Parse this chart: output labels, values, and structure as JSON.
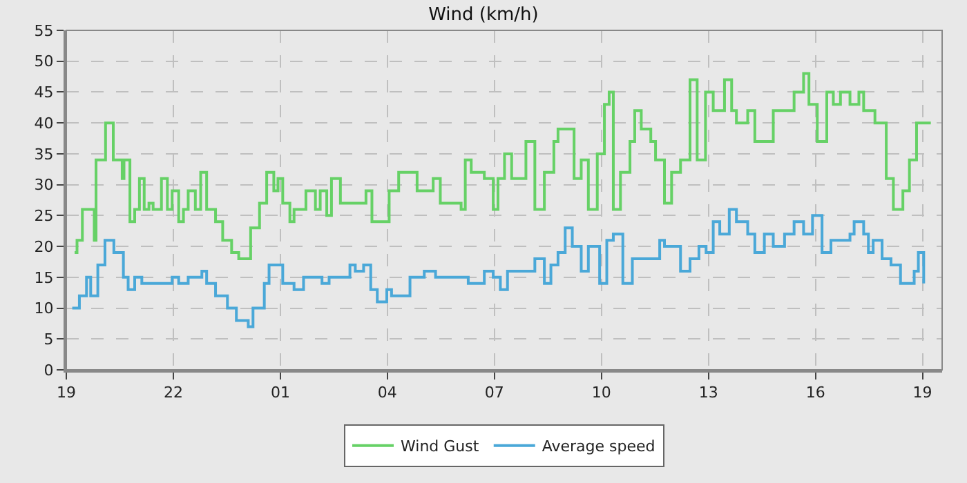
{
  "chart_data": {
    "type": "step",
    "title": "Wind (km/h)",
    "series": [
      {
        "name": "Wind Gust",
        "color": "#66d166",
        "x": [
          "--01-01T19:14",
          "--01-01T19:18",
          "--01-01T19:27",
          "--01-01T19:47",
          "--01-01T19:50",
          "--01-01T20:06",
          "--01-01T20:19",
          "--01-01T20:34",
          "--01-01T20:37",
          "--01-01T20:47",
          "--01-01T20:55",
          "--01-01T21:03",
          "--01-01T21:11",
          "--01-01T21:19",
          "--01-01T21:26",
          "--01-01T21:40",
          "--01-01T21:50",
          "--01-01T21:58",
          "--01-01T22:09",
          "--01-01T22:17",
          "--01-01T22:25",
          "--01-01T22:37",
          "--01-01T22:46",
          "--01-01T22:56",
          "--01-01T23:11",
          "--01-01T23:23",
          "--01-01T23:38",
          "--01-01T23:50",
          "--01-02T00:10",
          "--01-02T00:25",
          "--01-02T00:37",
          "--01-02T00:49",
          "--01-02T00:56",
          "--01-02T01:04",
          "--01-02T01:16",
          "--01-02T01:23",
          "--01-02T01:43",
          "--01-02T01:59",
          "--01-02T02:07",
          "--01-02T02:18",
          "--01-02T02:26",
          "--01-02T02:41",
          "--01-02T03:01",
          "--01-02T03:24",
          "--01-02T03:34",
          "--01-02T04:03",
          "--01-02T04:19",
          "--01-02T04:50",
          "--01-02T05:17",
          "--01-02T05:29",
          "--01-02T06:04",
          "--01-02T06:11",
          "--01-02T06:21",
          "--01-02T06:43",
          "--01-02T06:58",
          "--01-02T07:06",
          "--01-02T07:17",
          "--01-02T07:29",
          "--01-02T07:53",
          "--01-02T08:08",
          "--01-02T08:24",
          "--01-02T08:40",
          "--01-02T08:47",
          "--01-02T09:03",
          "--01-02T09:14",
          "--01-02T09:26",
          "--01-02T09:38",
          "--01-02T09:53",
          "--01-02T10:05",
          "--01-02T10:13",
          "--01-02T10:20",
          "--01-02T10:32",
          "--01-02T10:48",
          "--01-02T10:56",
          "--01-02T11:07",
          "--01-02T11:23",
          "--01-02T11:31",
          "--01-02T11:46",
          "--01-02T11:58",
          "--01-02T12:13",
          "--01-02T12:29",
          "--01-02T12:41",
          "--01-02T12:55",
          "--01-02T13:08",
          "--01-02T13:18",
          "--01-02T13:27",
          "--01-02T13:39",
          "--01-02T13:47",
          "--01-02T14:06",
          "--01-02T14:18",
          "--01-02T14:29",
          "--01-02T14:49",
          "--01-02T15:24",
          "--01-02T15:40",
          "--01-02T15:49",
          "--01-02T16:03",
          "--01-02T16:19",
          "--01-02T16:30",
          "--01-02T16:42",
          "--01-02T16:58",
          "--01-02T17:13",
          "--01-02T17:21",
          "--01-02T17:40",
          "--01-02T17:59",
          "--01-02T18:11",
          "--01-02T18:27",
          "--01-02T18:38",
          "--01-02T18:50",
          "--01-02T19:02",
          "--01-02T19:14"
        ],
        "values": [
          19,
          21,
          26,
          21,
          34,
          40,
          34,
          31,
          34,
          24,
          26,
          31,
          26,
          27,
          26,
          31,
          26,
          29,
          24,
          26,
          29,
          26,
          32,
          26,
          24,
          21,
          19,
          18,
          23,
          27,
          32,
          29,
          31,
          27,
          24,
          26,
          29,
          26,
          29,
          25,
          31,
          27,
          27,
          29,
          24,
          29,
          32,
          29,
          31,
          27,
          26,
          34,
          32,
          31,
          26,
          31,
          35,
          31,
          37,
          26,
          32,
          37,
          39,
          39,
          31,
          34,
          26,
          35,
          43,
          45,
          26,
          32,
          37,
          42,
          39,
          37,
          34,
          27,
          32,
          34,
          47,
          34,
          45,
          42,
          42,
          47,
          42,
          40,
          42,
          37,
          37,
          42,
          45,
          48,
          43,
          37,
          45,
          43,
          45,
          43,
          45,
          42,
          40,
          31,
          26,
          29,
          34,
          40,
          40,
          40
        ]
      },
      {
        "name": "Average speed",
        "color": "#4aa8d8",
        "x": [
          "--01-01T19:10",
          "--01-01T19:22",
          "--01-01T19:34",
          "--01-01T19:41",
          "--01-01T19:53",
          "--01-01T20:05",
          "--01-01T20:20",
          "--01-01T20:36",
          "--01-01T20:44",
          "--01-01T20:55",
          "--01-01T21:07",
          "--01-01T21:22",
          "--01-01T21:38",
          "--01-01T21:58",
          "--01-01T22:09",
          "--01-01T22:25",
          "--01-01T22:48",
          "--01-01T22:56",
          "--01-01T23:11",
          "--01-01T23:31",
          "--01-01T23:46",
          "--01-02T00:06",
          "--01-02T00:14",
          "--01-02T00:33",
          "--01-02T00:41",
          "--01-02T00:53",
          "--01-02T01:04",
          "--01-02T01:23",
          "--01-02T01:39",
          "--01-02T01:51",
          "--01-02T02:10",
          "--01-02T02:22",
          "--01-02T02:34",
          "--01-02T02:57",
          "--01-02T03:05",
          "--01-02T03:06",
          "--01-02T03:20",
          "--01-02T03:32",
          "--01-02T03:43",
          "--01-02T03:59",
          "--01-02T04:07",
          "--01-02T04:38",
          "--01-02T05:02",
          "--01-02T05:21",
          "--01-02T05:59",
          "--01-02T06:16",
          "--01-02T06:43",
          "--01-02T06:58",
          "--01-02T07:10",
          "--01-02T07:22",
          "--01-02T08:08",
          "--01-02T08:24",
          "--01-02T08:35",
          "--01-02T08:47",
          "--01-02T08:59",
          "--01-02T09:11",
          "--01-02T09:26",
          "--01-02T09:38",
          "--01-02T09:57",
          "--01-02T10:09",
          "--01-02T10:20",
          "--01-02T10:36",
          "--01-02T10:52",
          "--01-02T11:38",
          "--01-02T11:46",
          "--01-02T12:13",
          "--01-02T12:29",
          "--01-02T12:44",
          "--01-02T12:56",
          "--01-02T13:08",
          "--01-02T13:19",
          "--01-02T13:35",
          "--01-02T13:47",
          "--01-02T14:06",
          "--01-02T14:18",
          "--01-02T14:34",
          "--01-02T14:49",
          "--01-02T15:08",
          "--01-02T15:24",
          "--01-02T15:40",
          "--01-02T15:55",
          "--01-02T16:11",
          "--01-02T16:26",
          "--01-02T16:58",
          "--01-02T17:05",
          "--01-02T17:21",
          "--01-02T17:29",
          "--01-02T17:37",
          "--01-02T17:52",
          "--01-02T18:07",
          "--01-02T18:23",
          "--01-02T18:38",
          "--01-02T18:46",
          "--01-02T18:53",
          "--01-02T19:02"
        ],
        "values": [
          10,
          12,
          15,
          12,
          17,
          21,
          19,
          15,
          13,
          15,
          14,
          14,
          14,
          15,
          14,
          15,
          16,
          14,
          12,
          10,
          8,
          7,
          10,
          14,
          17,
          17,
          14,
          13,
          15,
          15,
          14,
          15,
          15,
          17,
          17,
          16,
          17,
          13,
          11,
          13,
          12,
          15,
          16,
          15,
          15,
          14,
          16,
          15,
          13,
          16,
          18,
          14,
          17,
          19,
          23,
          20,
          16,
          20,
          14,
          21,
          22,
          14,
          18,
          21,
          20,
          16,
          18,
          20,
          19,
          24,
          22,
          26,
          24,
          22,
          19,
          22,
          20,
          22,
          24,
          22,
          25,
          19,
          21,
          22,
          24,
          22,
          19,
          21,
          18,
          17,
          14,
          14,
          16,
          19,
          14
        ]
      }
    ],
    "xlim": [
      "--01-01T19:00",
      "--01-02T19:33"
    ],
    "xticks": [
      {
        "value": "--01-01T19:00",
        "label": "19"
      },
      {
        "value": "--01-01T22:00",
        "label": "22"
      },
      {
        "value": "--01-02T01:00",
        "label": "01"
      },
      {
        "value": "--01-02T04:00",
        "label": "04"
      },
      {
        "value": "--01-02T07:00",
        "label": "07"
      },
      {
        "value": "--01-02T10:00",
        "label": "10"
      },
      {
        "value": "--01-02T13:00",
        "label": "13"
      },
      {
        "value": "--01-02T16:00",
        "label": "16"
      },
      {
        "value": "--01-02T19:00",
        "label": "19"
      }
    ],
    "ylim": [
      0,
      55
    ],
    "yticks": [
      0,
      5,
      10,
      15,
      20,
      25,
      30,
      35,
      40,
      45,
      50,
      55
    ],
    "grid": true,
    "legend": "bottom",
    "line_style": "solid",
    "marker": "none"
  }
}
